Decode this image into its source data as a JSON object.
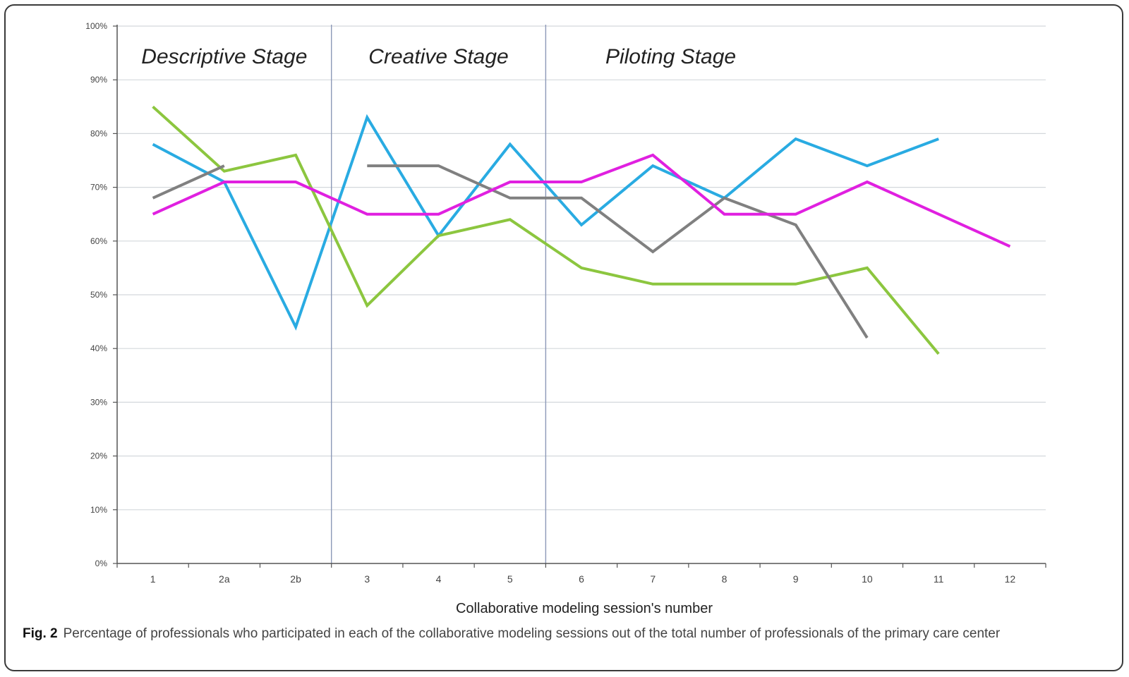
{
  "chart_data": {
    "type": "line",
    "x_categories": [
      "1",
      "2a",
      "2b",
      "3",
      "4",
      "5",
      "6",
      "7",
      "8",
      "9",
      "10",
      "11",
      "12"
    ],
    "ylim": [
      0,
      100
    ],
    "y_ticks": [
      0,
      10,
      20,
      30,
      40,
      50,
      60,
      70,
      80,
      90,
      100
    ],
    "y_tick_labels": [
      "0%",
      "10%",
      "20%",
      "30%",
      "40%",
      "50%",
      "60%",
      "70%",
      "80%",
      "90%",
      "100%"
    ],
    "xlabel": "Collaborative modeling session's number",
    "ylabel": "",
    "grid": true,
    "stages": [
      {
        "label": "Descriptive Stage",
        "after_category_index": 3
      },
      {
        "label": "Creative Stage",
        "after_category_index": 6
      },
      {
        "label": "Piloting Stage"
      }
    ],
    "series": [
      {
        "color": "#29abe2",
        "values": [
          78,
          71,
          44,
          83,
          61,
          78,
          63,
          74,
          68,
          79,
          74,
          79,
          null
        ]
      },
      {
        "color": "#8cc63f",
        "values": [
          85,
          73,
          76,
          48,
          61,
          64,
          55,
          52,
          52,
          52,
          55,
          39,
          null
        ]
      },
      {
        "color": "#808080",
        "values": [
          68,
          74,
          null,
          74,
          74,
          68,
          68,
          58,
          68,
          63,
          42,
          null,
          null
        ]
      },
      {
        "color": "#e020e0",
        "values": [
          65,
          71,
          71,
          65,
          65,
          71,
          71,
          76,
          65,
          65,
          71,
          65,
          59
        ]
      }
    ]
  },
  "caption": {
    "fig_label": "Fig. 2",
    "text": "Percentage of professionals who participated in each of the collaborative modeling sessions out of the total number of professionals of the primary care center"
  }
}
